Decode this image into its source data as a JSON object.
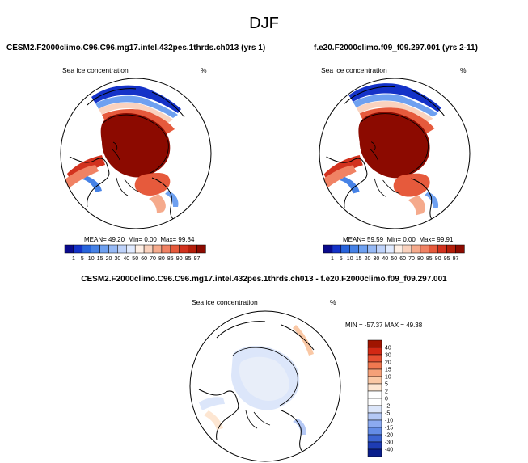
{
  "season": "DJF",
  "panels": [
    {
      "case": "CESM2.F2000climo.C96.C96.mg17.intel.432pes.1thrds.ch013 (yrs 1)",
      "variable": "Sea ice concentration",
      "units": "%",
      "mean_label": "MEAN=",
      "mean": "49.20",
      "min_label": "Min=",
      "min": "0.00",
      "max_label": "Max=",
      "max": "99.84"
    },
    {
      "case": "f.e20.F2000climo.f09_f09.297.001 (yrs 2-11)",
      "variable": "Sea ice concentration",
      "units": "%",
      "mean_label": "MEAN=",
      "mean": "59.59",
      "min_label": "Min=",
      "min": "0.00",
      "max_label": "Max=",
      "max": "99.91"
    }
  ],
  "colorbar": {
    "levels": [
      "1",
      "5",
      "10",
      "15",
      "20",
      "30",
      "40",
      "50",
      "60",
      "70",
      "80",
      "85",
      "90",
      "95",
      "97"
    ],
    "colors": [
      "#0a0a8c",
      "#1432c8",
      "#2864dc",
      "#4682e6",
      "#6ea0f0",
      "#96b9f5",
      "#bed2fa",
      "#e1ebff",
      "#fff0e6",
      "#fad2be",
      "#f5aa8c",
      "#f08264",
      "#e65a3c",
      "#d2321e",
      "#b41e0a",
      "#8c0a00"
    ]
  },
  "difference": {
    "title": "CESM2.F2000climo.C96.C96.mg17.intel.432pes.1thrds.ch013 - f.e20.F2000climo.f09_f09.297.001",
    "variable": "Sea ice concentration",
    "units": "%",
    "min_label": "MIN =",
    "min": "-57.37",
    "max_label": "MAX =",
    "max": "49.38",
    "levels": [
      "40",
      "30",
      "20",
      "15",
      "10",
      "5",
      "2",
      "0",
      "-2",
      "-5",
      "-10",
      "-15",
      "-20",
      "-30",
      "-40"
    ],
    "colors": [
      "#a01400",
      "#d22814",
      "#e65032",
      "#f07850",
      "#f5a078",
      "#fac8a5",
      "#fde6d2",
      "#ffffff",
      "#ffffff",
      "#dce6fa",
      "#b4c8f5",
      "#8caaf0",
      "#648ce6",
      "#3c64d2",
      "#1e3cb4",
      "#0a1e8c"
    ]
  }
}
